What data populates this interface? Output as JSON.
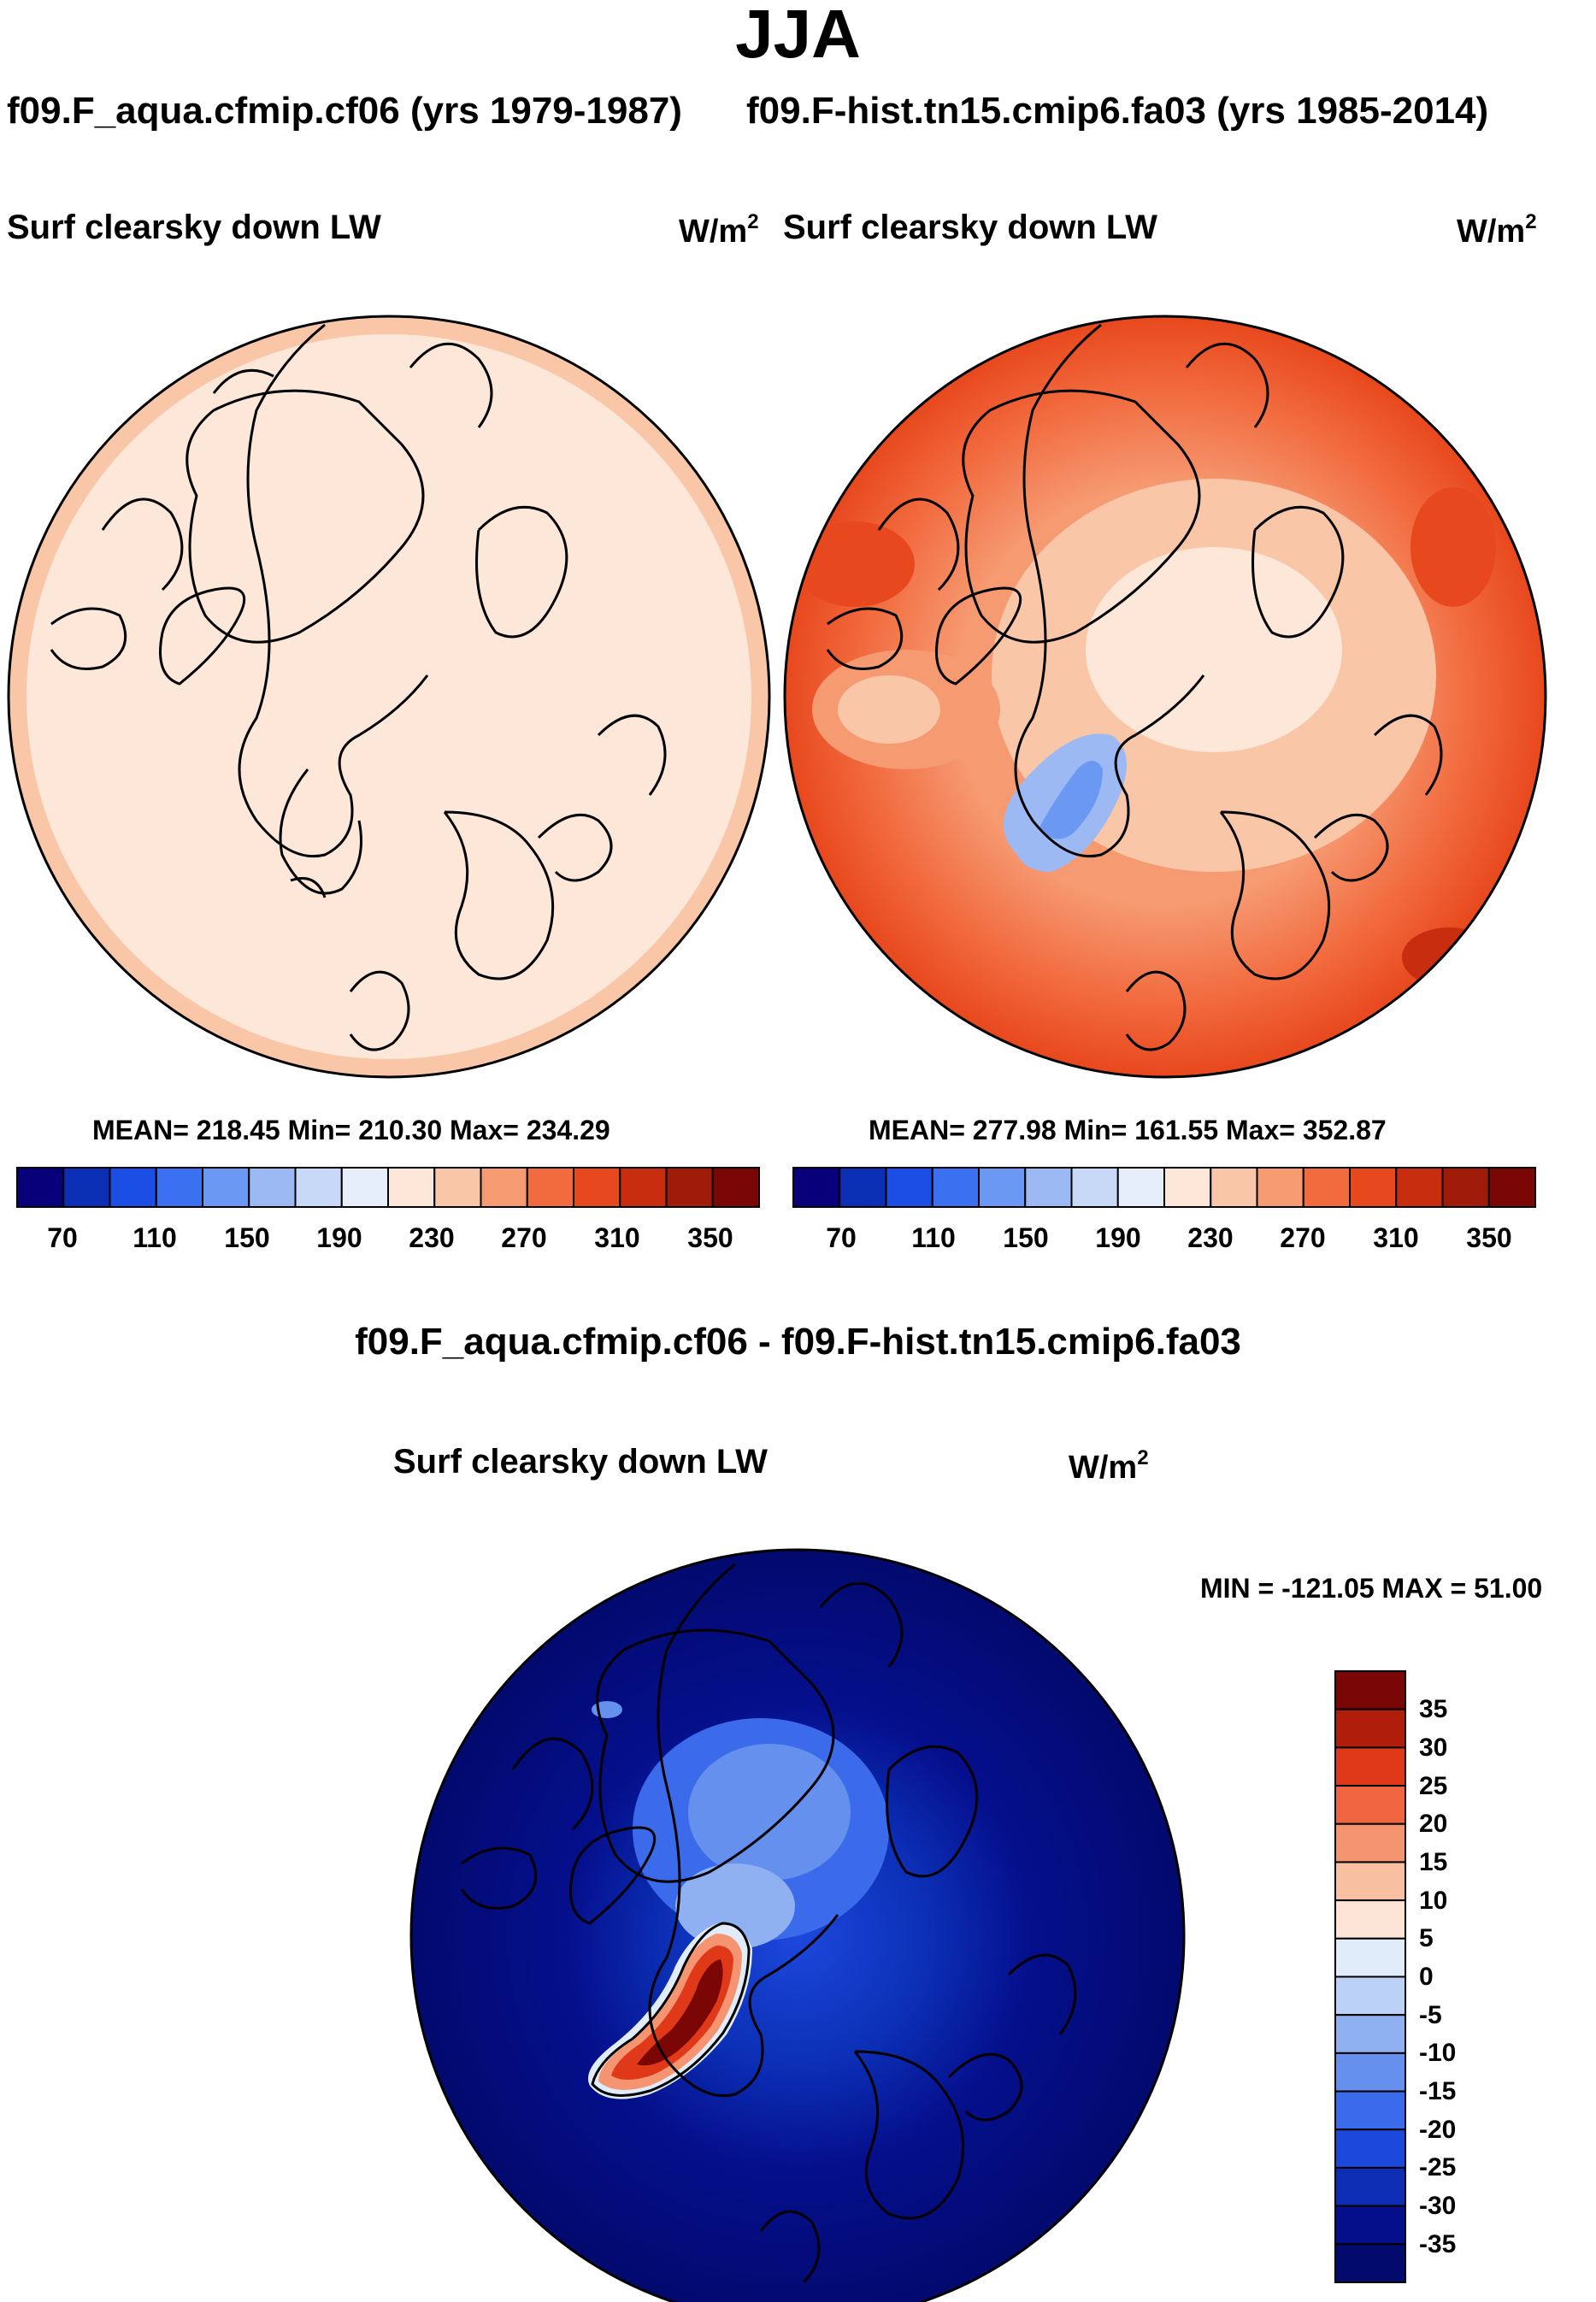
{
  "figure": {
    "season": "JJA",
    "left_case": "f09.F_aqua.cfmip.cf06 (yrs 1979-1987)",
    "right_case": "f09.F-hist.tn15.cmip6.fa03 (yrs 1985-2014)",
    "diff_title": "f09.F_aqua.cfmip.cf06 - f09.F-hist.tn15.cmip6.fa03"
  },
  "panels": {
    "left": {
      "title": "Surf clearsky down LW",
      "units_base": "W/m",
      "units_exp": "2",
      "stats": "MEAN= 218.45  Min= 210.30  Max= 234.29"
    },
    "right": {
      "title": "Surf clearsky down LW",
      "units_base": "W/m",
      "units_exp": "2",
      "stats": "MEAN= 277.98  Min= 161.55  Max= 352.87"
    },
    "diff": {
      "title": "Surf clearsky down LW",
      "units_base": "W/m",
      "units_exp": "2",
      "stats": "MIN = -121.05 MAX =  51.00"
    }
  },
  "chart_data": [
    {
      "type": "heatmap",
      "title": "Surf clearsky down LW",
      "projection": "north polar stereographic",
      "units": "W/m2",
      "mean": 218.45,
      "min": 210.3,
      "max": 234.29,
      "colorbar_ticks": [
        "70",
        "110",
        "150",
        "190",
        "230",
        "270",
        "310",
        "350"
      ]
    },
    {
      "type": "heatmap",
      "title": "Surf clearsky down LW",
      "projection": "north polar stereographic",
      "units": "W/m2",
      "mean": 277.98,
      "min": 161.55,
      "max": 352.87,
      "colorbar_ticks": [
        "70",
        "110",
        "150",
        "190",
        "230",
        "270",
        "310",
        "350"
      ]
    },
    {
      "type": "heatmap",
      "title": "Surf clearsky down LW",
      "projection": "north polar stereographic",
      "units": "W/m2",
      "min": -121.05,
      "max": 51.0,
      "colorbar_ticks": [
        "35",
        "30",
        "25",
        "20",
        "15",
        "10",
        "5",
        "0",
        "-5",
        "-10",
        "-15",
        "-20",
        "-25",
        "-30",
        "-35"
      ]
    }
  ],
  "colors": {
    "abs_scale": [
      "#08007a",
      "#0a2fb4",
      "#1b4ee4",
      "#3b70f0",
      "#6b98f2",
      "#9cb9f3",
      "#c8d9f7",
      "#e6eefb",
      "#fce7d8",
      "#f9c6a8",
      "#f69a72",
      "#f26b3f",
      "#e8481d",
      "#c72d0e",
      "#a01c0a",
      "#7a0606"
    ],
    "diff_scale": [
      "#7a0606",
      "#b01d0a",
      "#e0391a",
      "#f06640",
      "#f49470",
      "#f8bfa1",
      "#fce5d6",
      "#e1ecfb",
      "#bcd1f6",
      "#8fb0f1",
      "#6690ee",
      "#3b6bea",
      "#1c48dc",
      "#0b2eb4",
      "#050f8c",
      "#020a6e"
    ]
  }
}
